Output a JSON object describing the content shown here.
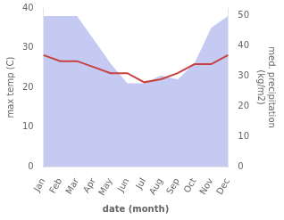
{
  "chart_data": {
    "type": "line",
    "xlabel": "date (month)",
    "ylabel": "max temp (C)",
    "y2label": "med. precipitation\n(kg/m2)",
    "categories": [
      "Jan",
      "Feb",
      "Mar",
      "Apr",
      "May",
      "Jun",
      "Jul",
      "Aug",
      "Sep",
      "Oct",
      "Nov",
      "Dec"
    ],
    "series": [
      {
        "type": "area",
        "color": "#b0b8ee",
        "values": [
          38,
          38,
          38,
          32,
          26,
          21,
          21,
          23,
          22,
          26,
          35,
          38
        ]
      },
      {
        "type": "line",
        "color": "#c94040",
        "axis": "y2",
        "values": [
          37,
          35,
          35,
          33,
          31,
          31,
          28,
          29,
          31,
          34,
          34,
          37
        ]
      }
    ],
    "ylim": [
      0,
      40
    ],
    "yticks": [
      0,
      10,
      20,
      30,
      40
    ],
    "y2lim": [
      0,
      52.63
    ],
    "y2ticks": [
      0,
      10,
      20,
      30,
      40,
      50
    ],
    "grid": false
  }
}
